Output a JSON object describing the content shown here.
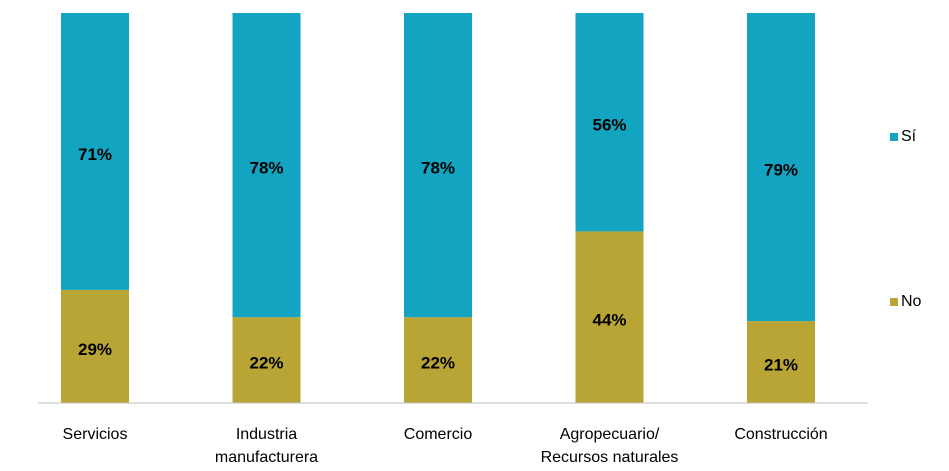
{
  "chart_data": {
    "type": "stacked_bar",
    "categories": [
      [
        "Servicios"
      ],
      [
        "Industria",
        "manufacturera"
      ],
      [
        "Comercio"
      ],
      [
        "Agropecuario/",
        "Recursos naturales"
      ],
      [
        "Construcción"
      ]
    ],
    "series": [
      {
        "name": "No",
        "color": "#b8a535",
        "values": [
          29,
          22,
          22,
          44,
          21
        ],
        "value_labels": [
          "29%",
          "22%",
          "22%",
          "44%",
          "21%"
        ]
      },
      {
        "name": "Sí",
        "color": "#12a4c1",
        "values": [
          71,
          78,
          78,
          56,
          79
        ],
        "value_labels": [
          "71%",
          "78%",
          "78%",
          "56%",
          "79%"
        ]
      }
    ],
    "ylim": [
      0,
      100
    ],
    "legend": "right"
  }
}
